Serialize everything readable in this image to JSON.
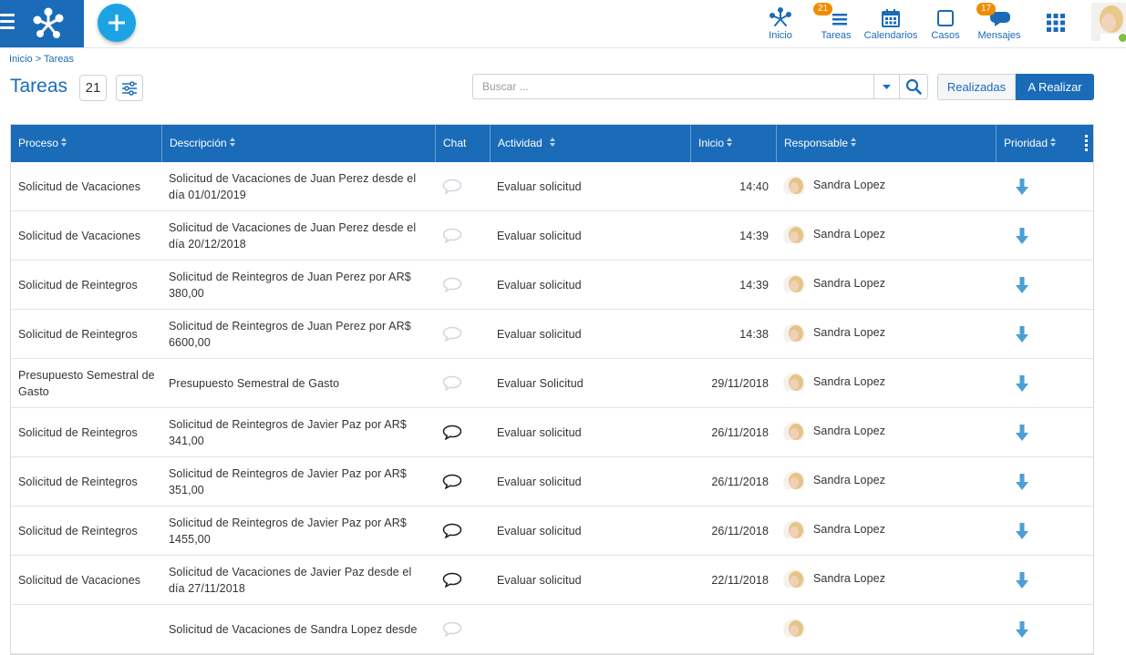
{
  "nav": {
    "inicio": "Inicio",
    "tareas": "Tareas",
    "tareas_badge": "21",
    "calendarios": "Calendarios",
    "casos": "Casos",
    "mensajes": "Mensajes",
    "mensajes_badge": "17"
  },
  "breadcrumb": "Inicio > Tareas",
  "page": {
    "title": "Tareas",
    "count": "21"
  },
  "search": {
    "placeholder": "Buscar ..."
  },
  "toggle": {
    "done": "Realizadas",
    "todo": "A Realizar"
  },
  "columns": {
    "proceso": "Proceso",
    "descripcion": "Descripción",
    "chat": "Chat",
    "actividad": "Actividad",
    "inicio": "Inicio",
    "responsable": "Responsable",
    "prioridad": "Prioridad"
  },
  "rows": [
    {
      "proceso": "Solicitud de Vacaciones",
      "descripcion": "Solicitud de Vacaciones de Juan Perez desde el día 01/01/2019",
      "chat": "empty",
      "actividad": "Evaluar solicitud",
      "inicio": "14:40",
      "responsable": "Sandra Lopez",
      "prioridad": "low"
    },
    {
      "proceso": "Solicitud de Vacaciones",
      "descripcion": "Solicitud de Vacaciones de Juan Perez desde el día 20/12/2018",
      "chat": "empty",
      "actividad": "Evaluar solicitud",
      "inicio": "14:39",
      "responsable": "Sandra Lopez",
      "prioridad": "low"
    },
    {
      "proceso": "Solicitud de Reintegros",
      "descripcion": "Solicitud de Reintegros de Juan Perez por AR$ 380,00",
      "chat": "empty",
      "actividad": "Evaluar solicitud",
      "inicio": "14:39",
      "responsable": "Sandra Lopez",
      "prioridad": "low"
    },
    {
      "proceso": "Solicitud de Reintegros",
      "descripcion": "Solicitud de Reintegros de Juan Perez por AR$ 6600,00",
      "chat": "empty",
      "actividad": "Evaluar solicitud",
      "inicio": "14:38",
      "responsable": "Sandra Lopez",
      "prioridad": "low"
    },
    {
      "proceso": "Presupuesto Semestral de Gasto",
      "descripcion": "Presupuesto Semestral de Gasto",
      "chat": "empty",
      "actividad": "Evaluar Solicitud",
      "inicio": "29/11/2018",
      "responsable": "Sandra Lopez",
      "prioridad": "low"
    },
    {
      "proceso": "Solicitud de Reintegros",
      "descripcion": "Solicitud de Reintegros de Javier Paz por AR$ 341,00",
      "chat": "active",
      "actividad": "Evaluar solicitud",
      "inicio": "26/11/2018",
      "responsable": "Sandra Lopez",
      "prioridad": "low"
    },
    {
      "proceso": "Solicitud de Reintegros",
      "descripcion": "Solicitud de Reintegros de Javier Paz por AR$ 351,00",
      "chat": "active",
      "actividad": "Evaluar solicitud",
      "inicio": "26/11/2018",
      "responsable": "Sandra Lopez",
      "prioridad": "low"
    },
    {
      "proceso": "Solicitud de Reintegros",
      "descripcion": "Solicitud de Reintegros de Javier Paz por AR$ 1455,00",
      "chat": "active",
      "actividad": "Evaluar solicitud",
      "inicio": "26/11/2018",
      "responsable": "Sandra Lopez",
      "prioridad": "low"
    },
    {
      "proceso": "Solicitud de Vacaciones",
      "descripcion": "Solicitud de Vacaciones de Javier Paz desde el día 27/11/2018",
      "chat": "active",
      "actividad": "Evaluar solicitud",
      "inicio": "22/11/2018",
      "responsable": "Sandra Lopez",
      "prioridad": "low"
    },
    {
      "proceso": "",
      "descripcion": "Solicitud de Vacaciones de Sandra Lopez desde",
      "chat": "empty",
      "actividad": "",
      "inicio": "",
      "responsable": "",
      "prioridad": "low"
    }
  ],
  "colors": {
    "primary": "#1a6bb8",
    "accent": "#1ca3e4",
    "badge": "#f08c00",
    "online": "#7cc142",
    "priority_arrow": "#4a9fd6"
  },
  "icons": {
    "logo": "network-logo-icon",
    "add": "plus-icon",
    "priority": "arrow-down-icon",
    "chat": "speech-bubble-icon"
  }
}
